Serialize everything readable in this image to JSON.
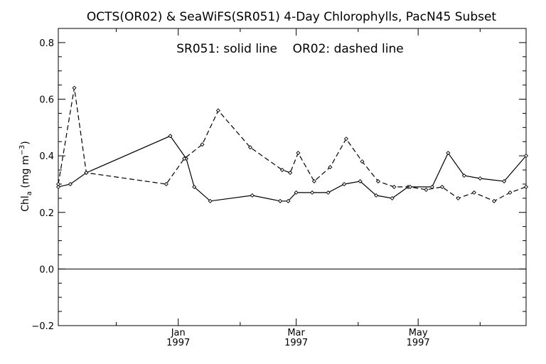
{
  "chart_data": {
    "type": "line",
    "title": "OCTS(OR02) & SeaWiFS(SR051) 4-Day Chlorophylls, PacN45 Subset",
    "annotation": "SR051: solid line    OR02: dashed line",
    "ylabel": "Chl_a (mg m^-3)",
    "ylabel_parts": {
      "base": "Chl",
      "sub": "a",
      "mid": " (mg m",
      "sup": "−3",
      "end": ")"
    },
    "xlabel": "",
    "x_type": "date",
    "xlim": [
      "1996-11-02",
      "1997-06-24"
    ],
    "ylim": [
      -0.2,
      0.85
    ],
    "y_ticks": [
      {
        "value": -0.2,
        "label": "−0.2"
      },
      {
        "value": 0.0,
        "label": "0.0"
      },
      {
        "value": 0.2,
        "label": "0.2"
      },
      {
        "value": 0.4,
        "label": "0.4"
      },
      {
        "value": 0.6,
        "label": "0.6"
      },
      {
        "value": 0.8,
        "label": "0.8"
      }
    ],
    "x_ticks": [
      {
        "date": "1997-01-01",
        "month": "Jan",
        "year": "1997"
      },
      {
        "date": "1997-03-01",
        "month": "Mar",
        "year": "1997"
      },
      {
        "date": "1997-05-01",
        "month": "May",
        "year": "1997"
      }
    ],
    "zero_line": true,
    "grid": false,
    "series": [
      {
        "name": "SR051",
        "style": "solid",
        "color": "#000000",
        "points": [
          {
            "x": "1996-11-02",
            "y": 0.29
          },
          {
            "x": "1996-11-08",
            "y": 0.3
          },
          {
            "x": "1996-11-16",
            "y": 0.34
          },
          {
            "x": "1996-12-28",
            "y": 0.47
          },
          {
            "x": "1997-01-05",
            "y": 0.39
          },
          {
            "x": "1997-01-09",
            "y": 0.29
          },
          {
            "x": "1997-01-17",
            "y": 0.24
          },
          {
            "x": "1997-02-07",
            "y": 0.26
          },
          {
            "x": "1997-02-21",
            "y": 0.24
          },
          {
            "x": "1997-02-25",
            "y": 0.24
          },
          {
            "x": "1997-03-01",
            "y": 0.27
          },
          {
            "x": "1997-03-09",
            "y": 0.27
          },
          {
            "x": "1997-03-17",
            "y": 0.27
          },
          {
            "x": "1997-03-25",
            "y": 0.3
          },
          {
            "x": "1997-04-02",
            "y": 0.31
          },
          {
            "x": "1997-04-10",
            "y": 0.26
          },
          {
            "x": "1997-04-18",
            "y": 0.25
          },
          {
            "x": "1997-04-26",
            "y": 0.29
          },
          {
            "x": "1997-05-08",
            "y": 0.29
          },
          {
            "x": "1997-05-16",
            "y": 0.41
          },
          {
            "x": "1997-05-24",
            "y": 0.33
          },
          {
            "x": "1997-06-01",
            "y": 0.32
          },
          {
            "x": "1997-06-13",
            "y": 0.31
          },
          {
            "x": "1997-06-24",
            "y": 0.4
          }
        ]
      },
      {
        "name": "OR02",
        "style": "dashed",
        "color": "#000000",
        "points": [
          {
            "x": "1996-11-02",
            "y": 0.3
          },
          {
            "x": "1996-11-10",
            "y": 0.64
          },
          {
            "x": "1996-11-16",
            "y": 0.34
          },
          {
            "x": "1996-12-26",
            "y": 0.3
          },
          {
            "x": "1997-01-04",
            "y": 0.39
          },
          {
            "x": "1997-01-13",
            "y": 0.44
          },
          {
            "x": "1997-01-21",
            "y": 0.56
          },
          {
            "x": "1997-02-06",
            "y": 0.43
          },
          {
            "x": "1997-02-22",
            "y": 0.35
          },
          {
            "x": "1997-02-26",
            "y": 0.34
          },
          {
            "x": "1997-03-02",
            "y": 0.41
          },
          {
            "x": "1997-03-10",
            "y": 0.31
          },
          {
            "x": "1997-03-18",
            "y": 0.36
          },
          {
            "x": "1997-03-26",
            "y": 0.46
          },
          {
            "x": "1997-04-03",
            "y": 0.38
          },
          {
            "x": "1997-04-11",
            "y": 0.31
          },
          {
            "x": "1997-04-19",
            "y": 0.29
          },
          {
            "x": "1997-04-27",
            "y": 0.29
          },
          {
            "x": "1997-05-05",
            "y": 0.28
          },
          {
            "x": "1997-05-13",
            "y": 0.29
          },
          {
            "x": "1997-05-21",
            "y": 0.25
          },
          {
            "x": "1997-05-29",
            "y": 0.27
          },
          {
            "x": "1997-06-08",
            "y": 0.24
          },
          {
            "x": "1997-06-16",
            "y": 0.27
          },
          {
            "x": "1997-06-24",
            "y": 0.29
          }
        ]
      }
    ]
  }
}
